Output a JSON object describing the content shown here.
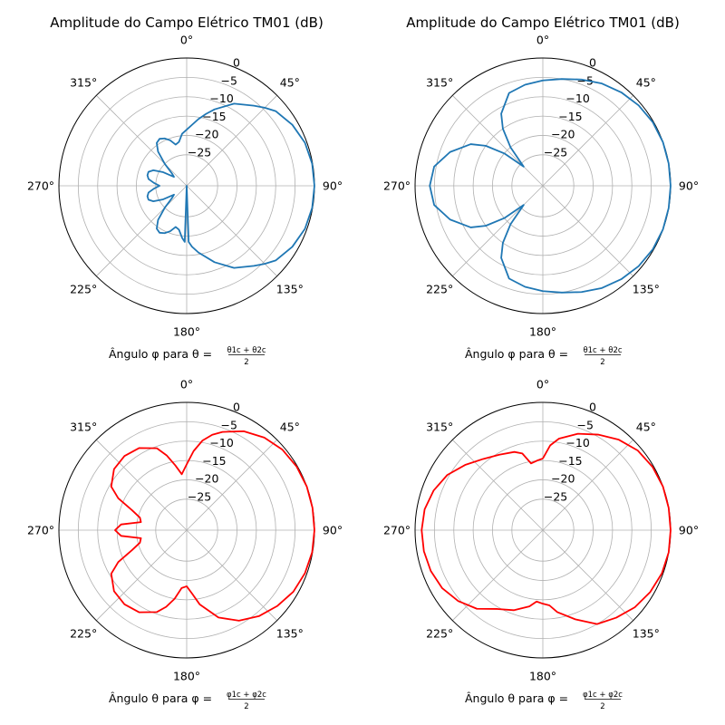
{
  "chart_data": [
    {
      "type": "polar",
      "title": "Amplitude do Campo Elétrico TM01 (dB)",
      "xlabel": {
        "prefix": "Ângulo φ para θ = ",
        "num": "θ1c + θ2c",
        "den": "2"
      },
      "theta_ticks": [
        "0°",
        "45°",
        "90°",
        "135°",
        "180°",
        "225°",
        "270°",
        "315°"
      ],
      "r_ticks": [
        "0",
        "−5",
        "−10",
        "−15",
        "−20",
        "−25"
      ],
      "r_tick_values": [
        0,
        -5,
        -10,
        -15,
        -20,
        -25
      ],
      "rlim": [
        -33,
        0
      ],
      "theta_zero_location": "N",
      "theta_direction": "clockwise",
      "grid": true,
      "color": "#1f77b4",
      "series": [
        {
          "angle_deg": [
            0,
            5,
            10,
            15,
            20,
            30,
            40,
            45,
            50,
            60,
            70,
            80,
            90,
            100,
            110,
            120,
            130,
            135,
            140,
            150,
            160,
            170,
            175,
            178,
            180,
            182,
            185,
            190,
            195,
            200,
            205,
            210,
            215,
            220,
            225,
            230,
            235,
            240,
            245,
            250,
            255,
            260,
            265,
            270,
            275,
            280,
            285,
            290,
            295,
            300,
            305,
            310,
            315,
            320,
            325,
            330,
            335,
            340,
            345,
            350,
            355,
            360
          ],
          "db": [
            -18.5,
            -17.2,
            -15.5,
            -13.8,
            -12.0,
            -8.5,
            -6.0,
            -4.5,
            -3.0,
            -1.5,
            -0.5,
            -0.1,
            0,
            -0.1,
            -0.5,
            -1.5,
            -3.0,
            -4.5,
            -6.0,
            -8.5,
            -12.0,
            -15.5,
            -17.2,
            -18.5,
            -33,
            -18.5,
            -19.5,
            -21.5,
            -22.0,
            -20.5,
            -19.5,
            -19.0,
            -19.5,
            -21.5,
            -25.0,
            -28.0,
            -29.0,
            -26.0,
            -23.5,
            -22.5,
            -22.5,
            -23.0,
            -24.5,
            -26.0,
            -24.5,
            -23.0,
            -22.5,
            -22.5,
            -23.5,
            -26.0,
            -29.0,
            -28.0,
            -25.0,
            -21.5,
            -19.5,
            -19.0,
            -19.5,
            -20.5,
            -22.0,
            -21.5,
            -19.5,
            -18.5
          ]
        }
      ]
    },
    {
      "type": "polar",
      "title": "Amplitude do Campo Elétrico TM01 (dB)",
      "xlabel": {
        "prefix": "Ângulo φ para θ = ",
        "num": "θ1c + θ2c",
        "den": "2"
      },
      "theta_ticks": [
        "0°",
        "45°",
        "90°",
        "135°",
        "180°",
        "225°",
        "270°",
        "315°"
      ],
      "r_ticks": [
        "0",
        "−5",
        "−10",
        "−15",
        "−20",
        "−25"
      ],
      "r_tick_values": [
        0,
        -5,
        -10,
        -15,
        -20,
        -25
      ],
      "rlim": [
        -33,
        0
      ],
      "theta_zero_location": "N",
      "theta_direction": "clockwise",
      "grid": true,
      "color": "#1f77b4",
      "series": [
        {
          "angle_deg": [
            0,
            10,
            20,
            30,
            40,
            50,
            60,
            70,
            80,
            90,
            100,
            110,
            120,
            130,
            140,
            150,
            160,
            170,
            180,
            190,
            200,
            210,
            215,
            220,
            225,
            230,
            235,
            240,
            250,
            260,
            270,
            280,
            290,
            300,
            305,
            310,
            315,
            320,
            325,
            330,
            340,
            350,
            360
          ],
          "db": [
            -5.8,
            -5.0,
            -3.8,
            -2.5,
            -1.5,
            -0.7,
            -0.2,
            0,
            0,
            0,
            0,
            0,
            -0.2,
            -0.7,
            -1.5,
            -2.5,
            -3.8,
            -5.0,
            -5.8,
            -6.5,
            -7.5,
            -11.5,
            -15.0,
            -20.0,
            -26.0,
            -20.0,
            -15.0,
            -11.5,
            -7.5,
            -4.5,
            -3.8,
            -4.5,
            -7.5,
            -11.5,
            -15.0,
            -20.0,
            -26.0,
            -20.0,
            -15.0,
            -11.5,
            -7.5,
            -6.5,
            -5.8
          ]
        }
      ]
    },
    {
      "type": "polar",
      "title": "",
      "xlabel": {
        "prefix": "Ângulo θ para φ = ",
        "num": "φ1c + φ2c",
        "den": "2"
      },
      "theta_ticks": [
        "0°",
        "45°",
        "90°",
        "135°",
        "180°",
        "225°",
        "270°",
        "315°"
      ],
      "r_ticks": [
        "0",
        "−5",
        "−10",
        "−15",
        "−20",
        "−25"
      ],
      "r_tick_values": [
        0,
        -5,
        -10,
        -15,
        -20,
        -25
      ],
      "rlim": [
        -33,
        0
      ],
      "theta_zero_location": "N",
      "theta_direction": "clockwise",
      "grid": true,
      "color": "#ff0000",
      "series": [
        {
          "angle_deg": [
            0,
            5,
            10,
            15,
            20,
            30,
            40,
            50,
            60,
            70,
            80,
            90,
            100,
            110,
            120,
            130,
            140,
            150,
            160,
            170,
            175,
            180,
            185,
            190,
            195,
            200,
            210,
            220,
            230,
            240,
            245,
            250,
            255,
            260,
            265,
            270,
            275,
            280,
            285,
            290,
            295,
            300,
            310,
            320,
            330,
            340,
            345,
            350,
            355,
            360
          ],
          "db": [
            -16.0,
            -12.5,
            -9.5,
            -7.5,
            -6.0,
            -3.5,
            -1.8,
            -0.7,
            -0.2,
            0,
            0,
            0,
            -0.1,
            -0.5,
            -1.2,
            -2.5,
            -4.0,
            -6.0,
            -9.0,
            -13.5,
            -16.5,
            -18.5,
            -18.0,
            -15.0,
            -12.5,
            -10.5,
            -8.5,
            -8.0,
            -8.5,
            -10.5,
            -13.5,
            -18.0,
            -20.5,
            -21.0,
            -16.0,
            -14.5,
            -16.0,
            -21.0,
            -20.5,
            -18.0,
            -13.5,
            -10.5,
            -8.5,
            -8.0,
            -8.5,
            -10.5,
            -13.0,
            -16.0,
            -18.5,
            -16.0
          ]
        }
      ]
    },
    {
      "type": "polar",
      "title": "",
      "xlabel": {
        "prefix": "Ângulo θ para φ = ",
        "num": "φ1c + φ2c",
        "den": "2"
      },
      "theta_ticks": [
        "0°",
        "45°",
        "90°",
        "135°",
        "180°",
        "225°",
        "270°",
        "315°"
      ],
      "r_ticks": [
        "0",
        "−5",
        "−10",
        "−15",
        "−20",
        "−25"
      ],
      "r_tick_values": [
        0,
        -5,
        -10,
        -15,
        -20,
        -25
      ],
      "rlim": [
        -33,
        0
      ],
      "theta_zero_location": "N",
      "theta_direction": "clockwise",
      "grid": true,
      "color": "#ff0000",
      "series": [
        {
          "angle_deg": [
            0,
            5,
            10,
            20,
            30,
            40,
            50,
            60,
            70,
            80,
            90,
            100,
            110,
            120,
            130,
            140,
            150,
            160,
            170,
            175,
            180,
            185,
            190,
            200,
            210,
            220,
            230,
            240,
            250,
            260,
            270,
            280,
            290,
            300,
            310,
            320,
            330,
            340,
            345,
            350,
            355,
            360
          ],
          "db": [
            -14.5,
            -11.0,
            -9.0,
            -6.5,
            -4.5,
            -2.5,
            -1.0,
            -0.3,
            0,
            0,
            0,
            0,
            -0.3,
            -1.0,
            -2.0,
            -3.5,
            -5.0,
            -8.5,
            -11.5,
            -13.5,
            -14.0,
            -14.5,
            -13.0,
            -11.0,
            -9.5,
            -6.5,
            -4.5,
            -3.0,
            -2.2,
            -1.8,
            -1.7,
            -2.0,
            -3.0,
            -4.5,
            -6.8,
            -9.0,
            -10.5,
            -11.5,
            -12.5,
            -15.5,
            -15.0,
            -14.5
          ]
        }
      ]
    }
  ]
}
